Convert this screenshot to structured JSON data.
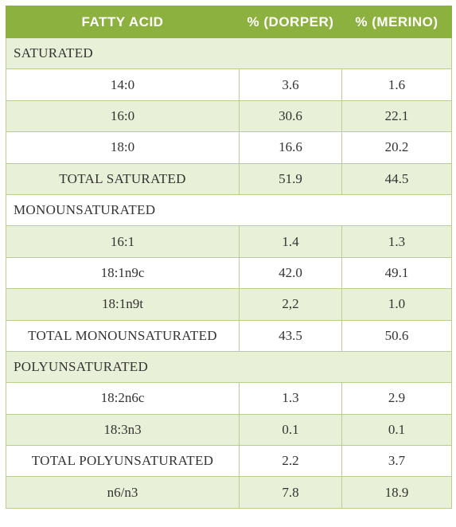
{
  "headers": [
    "FATTY ACID",
    "% (DORPER)",
    "% (MERINO)"
  ],
  "rows": [
    {
      "type": "section",
      "label": "SATURATED"
    },
    {
      "type": "data",
      "acid": "14:0",
      "dorper": "3.6",
      "merino": "1.6"
    },
    {
      "type": "data",
      "acid": "16:0",
      "dorper": "30.6",
      "merino": "22.1"
    },
    {
      "type": "data",
      "acid": "18:0",
      "dorper": "16.6",
      "merino": "20.2"
    },
    {
      "type": "data",
      "acid": "TOTAL SATURATED",
      "dorper": "51.9",
      "merino": "44.5"
    },
    {
      "type": "section",
      "label": "MONOUNSATURATED"
    },
    {
      "type": "data",
      "acid": "16:1",
      "dorper": "1.4",
      "merino": "1.3"
    },
    {
      "type": "data",
      "acid": "18:1n9c",
      "dorper": "42.0",
      "merino": "49.1"
    },
    {
      "type": "data",
      "acid": "18:1n9t",
      "dorper": "2,2",
      "merino": "1.0"
    },
    {
      "type": "data",
      "acid": "TOTAL MONOUNSATURATED",
      "dorper": "43.5",
      "merino": "50.6"
    },
    {
      "type": "section",
      "label": "POLYUNSATURATED"
    },
    {
      "type": "data",
      "acid": "18:2n6c",
      "dorper": "1.3",
      "merino": "2.9"
    },
    {
      "type": "data",
      "acid": "18:3n3",
      "dorper": "0.1",
      "merino": "0.1"
    },
    {
      "type": "data",
      "acid": "TOTAL POLYUNSATURATED",
      "dorper": "2.2",
      "merino": "3.7"
    },
    {
      "type": "data",
      "acid": "n6/n3",
      "dorper": "7.8",
      "merino": "18.9"
    }
  ],
  "colors": {
    "header_bg": "#8db13e",
    "row_shade": "#e8f0d8",
    "border": "#b9cf8c"
  }
}
